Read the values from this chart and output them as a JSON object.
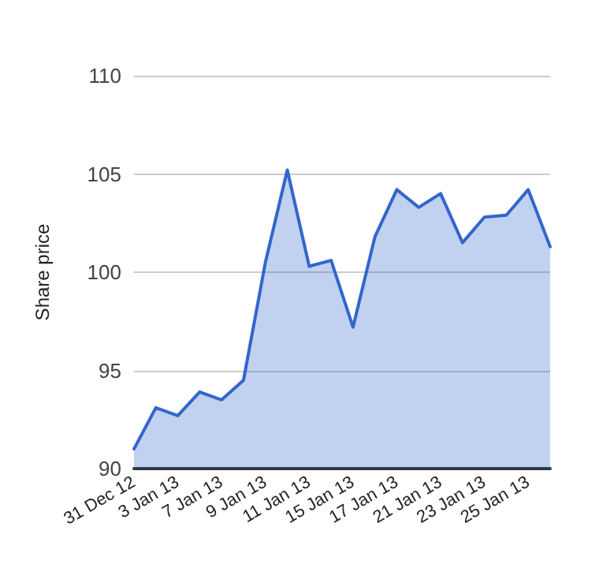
{
  "chart_data": {
    "type": "area",
    "ylabel": "Share price",
    "categories": [
      "31 Dec 12",
      null,
      "3 Jan 13",
      null,
      "7 Jan 13",
      null,
      "9 Jan 13",
      null,
      "11 Jan 13",
      null,
      "15 Jan 13",
      null,
      "17 Jan 13",
      null,
      "21 Jan 13",
      null,
      "23 Jan 13",
      null,
      "25 Jan 13",
      null
    ],
    "series": [
      {
        "color": "#3366cc",
        "values": [
          91.0,
          93.1,
          92.7,
          93.9,
          93.5,
          94.5,
          100.5,
          105.2,
          100.3,
          100.6,
          97.2,
          101.8,
          104.2,
          103.3,
          104.0,
          101.5,
          102.8,
          102.9,
          104.2,
          101.3
        ]
      }
    ],
    "ylim": [
      90,
      110
    ],
    "yticks": [
      90,
      95,
      100,
      105,
      110
    ],
    "grid": "y",
    "marker": "none",
    "line_style": "solid"
  }
}
